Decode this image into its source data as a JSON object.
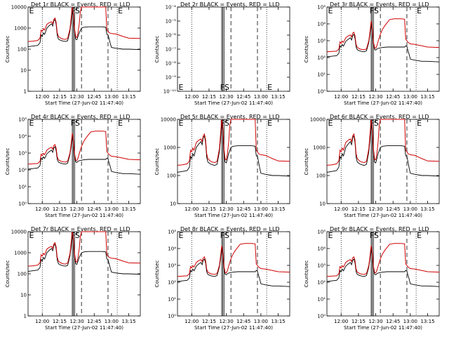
{
  "chart_data": {
    "type": "line",
    "x_axis": {
      "label": "Start Time (27-Jun-02 11:47:40)",
      "xlim": [
        "11:47:40",
        "13:25:00"
      ],
      "ticks": [
        "12:00",
        "12:15",
        "12:30",
        "12:45",
        "13:00",
        "13:15"
      ]
    },
    "y_axis": {
      "label": "Counts/sec",
      "scale": "log"
    },
    "series_colors": {
      "events": "#000000",
      "lld": "#d00000"
    },
    "markers": {
      "dotted": [
        "12:00",
        "13:05"
      ],
      "solid": [
        "12:26",
        "12:27",
        "12:28"
      ],
      "dashed": [
        "12:34",
        "12:57"
      ]
    },
    "panels": [
      {
        "title": "Det 1r BLACK = Events, RED = LLD",
        "ylim": [
          1,
          10000
        ],
        "yticks": [
          "1",
          "10",
          "100",
          "1000",
          "10000"
        ],
        "labels": [
          "E",
          "FS",
          "E"
        ],
        "has_data": true,
        "shape": "A"
      },
      {
        "title": "Det 2r BLACK = Events, RED = LLD",
        "ylim": [
          1e-10,
          0.0001
        ],
        "yticks": [
          "10⁻¹⁰",
          "10⁻⁹",
          "10⁻⁸",
          "10⁻⁷",
          "10⁻⁶",
          "10⁻⁵",
          "10⁻⁴"
        ],
        "labels": [
          "E",
          "FS",
          "E"
        ],
        "has_data": false,
        "shape": "none"
      },
      {
        "title": "Det 3r BLACK = Events, RED = LLD",
        "ylim": [
          1,
          100000
        ],
        "yticks": [
          "10⁰",
          "10¹",
          "10²",
          "10³",
          "10⁴",
          "10⁵"
        ],
        "labels": [
          "E",
          "FS",
          "E"
        ],
        "has_data": true,
        "shape": "B"
      },
      {
        "title": "Det 4r BLACK = Events, RED = LLD",
        "ylim": [
          1,
          100000
        ],
        "yticks": [
          "10⁰",
          "10¹",
          "10²",
          "10³",
          "10⁴",
          "10⁵"
        ],
        "labels": [
          "E",
          "FS",
          "E"
        ],
        "has_data": true,
        "shape": "B"
      },
      {
        "title": "Det 5r BLACK = Events, RED = LLD",
        "ylim": [
          10,
          10000
        ],
        "yticks": [
          "10",
          "100",
          "1000",
          "10000"
        ],
        "labels": [
          "E",
          "FS",
          "E"
        ],
        "has_data": true,
        "shape": "A"
      },
      {
        "title": "Det 6r BLACK = Events, RED = LLD",
        "ylim": [
          10,
          10000
        ],
        "yticks": [
          "10",
          "100",
          "1000",
          "10000"
        ],
        "labels": [
          "E",
          "FS",
          "E"
        ],
        "has_data": true,
        "shape": "A"
      },
      {
        "title": "Det 7r BLACK = Events, RED = LLD",
        "ylim": [
          1,
          10000
        ],
        "yticks": [
          "1",
          "10",
          "100",
          "1000",
          "10000"
        ],
        "labels": [
          "E",
          "FS",
          "E"
        ],
        "has_data": true,
        "shape": "A"
      },
      {
        "title": "Det 8r BLACK = Events, RED = LLD",
        "ylim": [
          1,
          100000
        ],
        "yticks": [
          "10⁰",
          "10¹",
          "10²",
          "10³",
          "10⁴",
          "10⁵"
        ],
        "labels": [
          "E",
          "FS",
          "E"
        ],
        "has_data": true,
        "shape": "B"
      },
      {
        "title": "Det 9r BLACK = Events, RED = LLD",
        "ylim": [
          1,
          100000
        ],
        "yticks": [
          "10⁰",
          "10¹",
          "10²",
          "10³",
          "10⁴",
          "10⁵"
        ],
        "labels": [
          "E",
          "FS",
          "E"
        ],
        "has_data": true,
        "shape": "B"
      }
    ],
    "profiles": {
      "A": {
        "events": [
          [
            "11:47:40",
            130
          ],
          [
            "11:52",
            140
          ],
          [
            "11:56",
            150
          ],
          [
            "11:58",
            200
          ],
          [
            "11:59",
            480
          ],
          [
            "12:00",
            400
          ],
          [
            "12:01",
            600
          ],
          [
            "12:02",
            500
          ],
          [
            "12:04",
            1000
          ],
          [
            "12:06",
            1300
          ],
          [
            "12:08",
            1600
          ],
          [
            "12:09",
            1250
          ],
          [
            "12:10",
            2200
          ],
          [
            "12:11",
            2600
          ],
          [
            "12:12",
            1500
          ],
          [
            "12:13",
            450
          ],
          [
            "12:14",
            300
          ],
          [
            "12:16",
            260
          ],
          [
            "12:18",
            240
          ],
          [
            "12:20",
            230
          ],
          [
            "12:22",
            250
          ],
          [
            "12:24",
            700
          ],
          [
            "12:25",
            2000
          ],
          [
            "12:26",
            8000
          ],
          [
            "12:27",
            3500
          ],
          [
            "12:28",
            600
          ],
          [
            "12:29",
            300
          ],
          [
            "12:30",
            280
          ],
          [
            "12:31",
            400
          ],
          [
            "12:32",
            600
          ],
          [
            "12:34",
            1000
          ],
          [
            "12:36",
            1100
          ],
          [
            "12:40",
            1150
          ],
          [
            "12:46",
            1150
          ],
          [
            "12:52",
            1150
          ],
          [
            "12:55",
            1100
          ],
          [
            "12:56",
            500
          ],
          [
            "12:57",
            480
          ],
          [
            "12:58",
            300
          ],
          [
            "12:59",
            180
          ],
          [
            "13:00",
            120
          ],
          [
            "13:04",
            110
          ],
          [
            "13:10",
            100
          ],
          [
            "13:15",
            100
          ],
          [
            "13:25",
            95
          ]
        ],
        "lld": [
          [
            "11:47:40",
            230
          ],
          [
            "11:52",
            240
          ],
          [
            "11:56",
            260
          ],
          [
            "11:58",
            330
          ],
          [
            "11:59",
            800
          ],
          [
            "12:00",
            700
          ],
          [
            "12:01",
            950
          ],
          [
            "12:02",
            800
          ],
          [
            "12:04",
            1500
          ],
          [
            "12:06",
            1800
          ],
          [
            "12:08",
            2000
          ],
          [
            "12:09",
            1600
          ],
          [
            "12:10",
            2600
          ],
          [
            "12:11",
            3000
          ],
          [
            "12:12",
            1900
          ],
          [
            "12:13",
            600
          ],
          [
            "12:14",
            400
          ],
          [
            "12:16",
            330
          ],
          [
            "12:18",
            300
          ],
          [
            "12:20",
            290
          ],
          [
            "12:22",
            320
          ],
          [
            "12:24",
            900
          ],
          [
            "12:25",
            3000
          ],
          [
            "12:26",
            10000
          ],
          [
            "12:27",
            5000
          ],
          [
            "12:28",
            900
          ],
          [
            "12:29",
            380
          ],
          [
            "12:30",
            360
          ],
          [
            "12:31",
            600
          ],
          [
            "12:32",
            1500
          ],
          [
            "12:33",
            6000
          ],
          [
            "12:34",
            10000
          ],
          [
            "12:38",
            10000
          ],
          [
            "12:46",
            10000
          ],
          [
            "12:52",
            10000
          ],
          [
            "12:55",
            10000
          ],
          [
            "12:56",
            800
          ],
          [
            "12:57",
            700
          ],
          [
            "12:58",
            600
          ],
          [
            "13:00",
            550
          ],
          [
            "13:04",
            520
          ],
          [
            "13:10",
            400
          ],
          [
            "13:15",
            330
          ],
          [
            "13:25",
            320
          ]
        ]
      },
      "B": {
        "events": [
          [
            "11:47:40",
            110
          ],
          [
            "11:52",
            120
          ],
          [
            "11:56",
            130
          ],
          [
            "11:58",
            180
          ],
          [
            "11:59",
            500
          ],
          [
            "12:00",
            420
          ],
          [
            "12:01",
            600
          ],
          [
            "12:02",
            480
          ],
          [
            "12:04",
            900
          ],
          [
            "12:06",
            1200
          ],
          [
            "12:08",
            1500
          ],
          [
            "12:09",
            1100
          ],
          [
            "12:10",
            2000
          ],
          [
            "12:11",
            2400
          ],
          [
            "12:12",
            1400
          ],
          [
            "12:13",
            420
          ],
          [
            "12:14",
            290
          ],
          [
            "12:16",
            250
          ],
          [
            "12:18",
            230
          ],
          [
            "12:20",
            220
          ],
          [
            "12:22",
            250
          ],
          [
            "12:24",
            800
          ],
          [
            "12:25",
            2500
          ],
          [
            "12:26",
            12000
          ],
          [
            "12:27",
            4000
          ],
          [
            "12:28",
            600
          ],
          [
            "12:29",
            300
          ],
          [
            "12:30",
            280
          ],
          [
            "12:31",
            320
          ],
          [
            "12:32",
            350
          ],
          [
            "12:36",
            400
          ],
          [
            "12:40",
            420
          ],
          [
            "12:46",
            420
          ],
          [
            "12:52",
            420
          ],
          [
            "12:55",
            420
          ],
          [
            "12:56",
            500
          ],
          [
            "12:57",
            450
          ],
          [
            "12:58",
            250
          ],
          [
            "12:59",
            150
          ],
          [
            "13:00",
            80
          ],
          [
            "13:04",
            70
          ],
          [
            "13:10",
            60
          ],
          [
            "13:15",
            60
          ],
          [
            "13:25",
            55
          ]
        ],
        "lld": [
          [
            "11:47:40",
            220
          ],
          [
            "11:52",
            230
          ],
          [
            "11:56",
            240
          ],
          [
            "11:58",
            320
          ],
          [
            "11:59",
            850
          ],
          [
            "12:00",
            700
          ],
          [
            "12:01",
            950
          ],
          [
            "12:02",
            800
          ],
          [
            "12:04",
            1500
          ],
          [
            "12:06",
            1900
          ],
          [
            "12:08",
            2200
          ],
          [
            "12:09",
            1700
          ],
          [
            "12:10",
            2800
          ],
          [
            "12:11",
            3200
          ],
          [
            "12:12",
            2000
          ],
          [
            "12:13",
            600
          ],
          [
            "12:14",
            400
          ],
          [
            "12:16",
            330
          ],
          [
            "12:18",
            300
          ],
          [
            "12:20",
            290
          ],
          [
            "12:22",
            330
          ],
          [
            "12:24",
            1000
          ],
          [
            "12:25",
            3500
          ],
          [
            "12:26",
            15000
          ],
          [
            "12:27",
            6000
          ],
          [
            "12:28",
            900
          ],
          [
            "12:29",
            380
          ],
          [
            "12:30",
            360
          ],
          [
            "12:31",
            500
          ],
          [
            "12:32",
            900
          ],
          [
            "12:34",
            2500
          ],
          [
            "12:36",
            5000
          ],
          [
            "12:38",
            8000
          ],
          [
            "12:40",
            12000
          ],
          [
            "12:42",
            18000
          ],
          [
            "12:46",
            20000
          ],
          [
            "12:52",
            20000
          ],
          [
            "12:55",
            19000
          ],
          [
            "12:56",
            1200
          ],
          [
            "12:57",
            1000
          ],
          [
            "12:58",
            800
          ],
          [
            "13:00",
            650
          ],
          [
            "13:04",
            600
          ],
          [
            "13:10",
            500
          ],
          [
            "13:15",
            420
          ],
          [
            "13:25",
            400
          ]
        ]
      }
    }
  }
}
